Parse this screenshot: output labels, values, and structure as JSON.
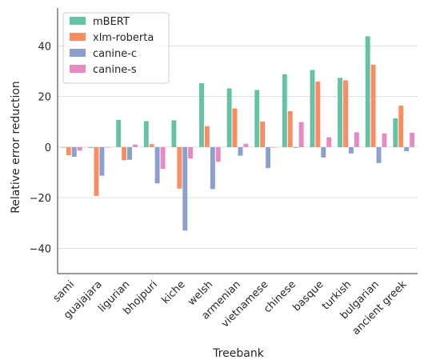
{
  "chart_data": {
    "type": "bar",
    "xlabel": "Treebank",
    "ylabel": "Relative error reduction",
    "ylim": [
      -50,
      55
    ],
    "yticks": [
      -40,
      -20,
      0,
      20,
      40
    ],
    "grid": "horizontal",
    "legend_position": "top-left",
    "categories": [
      "sami",
      "guajajara",
      "ligurian",
      "bhojpuri",
      "kiche",
      "welsh",
      "armenian",
      "vietnamese",
      "chinese",
      "basque",
      "turkish",
      "bulgarian",
      "ancient greek"
    ],
    "series": [
      {
        "name": "mBERT",
        "color": "#66c2a5",
        "values": [
          -0.2,
          -0.3,
          10.8,
          10.3,
          10.6,
          25.3,
          23.2,
          22.6,
          28.8,
          30.5,
          27.4,
          43.8,
          11.4
        ]
      },
      {
        "name": "xlm-roberta",
        "color": "#fc8d62",
        "values": [
          -3.2,
          -19.3,
          -5.2,
          1.2,
          -16.4,
          8.3,
          15.3,
          10.1,
          14.2,
          25.9,
          26.4,
          32.6,
          16.4
        ]
      },
      {
        "name": "canine-c",
        "color": "#8da0cb",
        "values": [
          -3.8,
          -11.3,
          -5.0,
          -14.3,
          -33.0,
          -16.6,
          -3.4,
          -8.3,
          -0.3,
          -4.1,
          -2.5,
          -6.3,
          -1.6
        ]
      },
      {
        "name": "canine-s",
        "color": "#e78ac3",
        "values": [
          -1.4,
          -0.2,
          1.0,
          -8.6,
          -4.5,
          -5.8,
          1.3,
          -0.2,
          9.9,
          3.9,
          5.9,
          5.4,
          5.7
        ]
      }
    ]
  }
}
